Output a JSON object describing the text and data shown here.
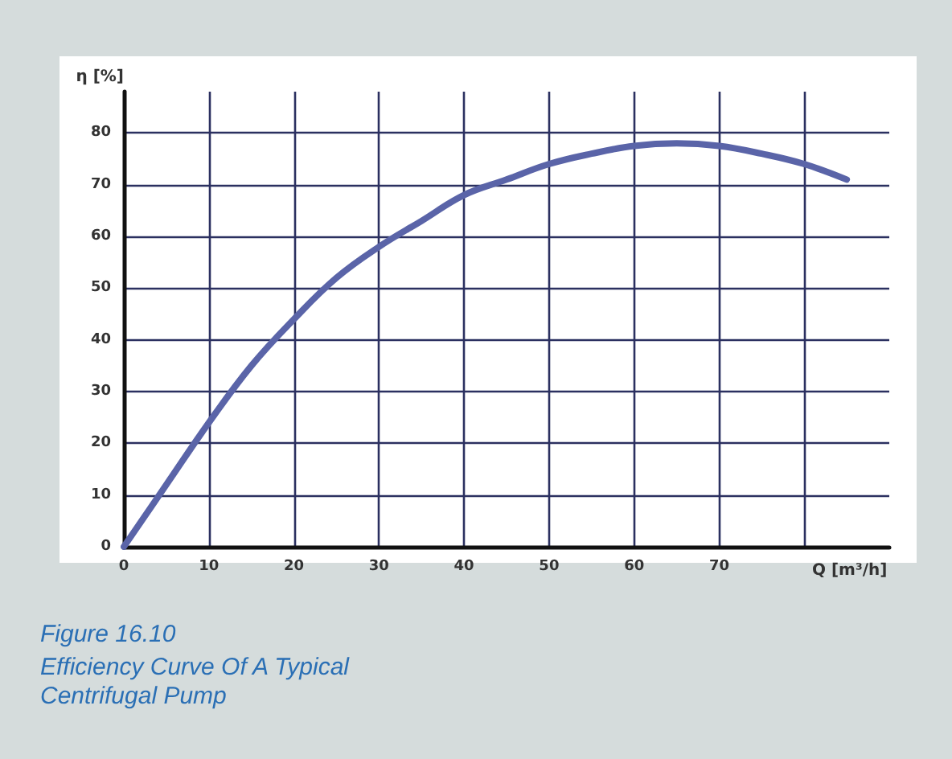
{
  "chart_data": {
    "type": "line",
    "title": "Figure 16.10",
    "subtitle": "Efficiency Curve Of A Typical Centrifugal Pump",
    "xlabel": "Q [m³/h]",
    "ylabel": "η [%]",
    "x": [
      0,
      5,
      10,
      15,
      20,
      25,
      30,
      35,
      40,
      45,
      50,
      55,
      60,
      65,
      70,
      75,
      80,
      85
    ],
    "series": [
      {
        "color": "#5a64a8",
        "values": [
          0,
          12,
          24,
          35,
          44,
          52,
          58,
          63,
          68,
          71,
          74,
          76,
          77.5,
          78,
          77.5,
          76,
          74,
          71
        ]
      }
    ],
    "xlim": [
      0,
      90
    ],
    "xticks": [
      0,
      10,
      20,
      30,
      40,
      50,
      60,
      70,
      {
        "value": 80,
        "label": null
      }
    ],
    "ylim": [
      0,
      88
    ],
    "yticks": [
      0,
      10,
      20,
      30,
      40,
      50,
      60,
      70,
      80
    ],
    "grid": true,
    "marker": "none",
    "line_style": "solid"
  }
}
